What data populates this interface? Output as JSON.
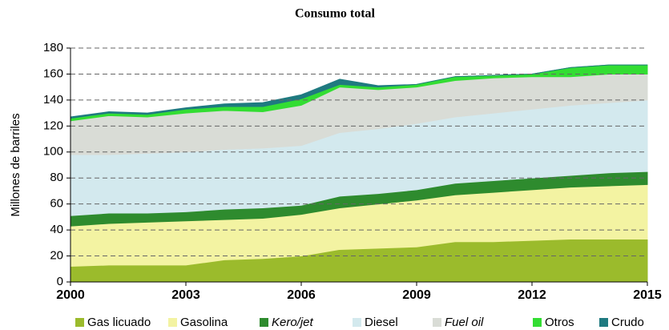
{
  "chart_data": {
    "type": "area",
    "title": "Consumo total",
    "ylabel": "Millones de barriles",
    "x": [
      2000,
      2001,
      2002,
      2003,
      2004,
      2005,
      2006,
      2007,
      2008,
      2009,
      2010,
      2011,
      2012,
      2013,
      2014,
      2015
    ],
    "xlim": [
      2000,
      2015
    ],
    "xticks": [
      2000,
      2003,
      2006,
      2009,
      2012,
      2015
    ],
    "ylim": [
      0,
      180
    ],
    "yticks": [
      0,
      20,
      40,
      60,
      80,
      100,
      120,
      140,
      160,
      180
    ],
    "grid": true,
    "stacked": true,
    "legend": "bottom",
    "series": [
      {
        "name": "Gas licuado",
        "color": "#9bbb2c",
        "values": [
          12,
          13,
          13,
          13,
          17,
          18,
          20,
          25,
          26,
          27,
          31,
          31,
          32,
          33,
          33,
          33
        ]
      },
      {
        "name": "Gasolina",
        "color": "#f3f3a2",
        "values": [
          31,
          32,
          33,
          34,
          31,
          31,
          32,
          32,
          34,
          36,
          36,
          38,
          39,
          40,
          41,
          42
        ]
      },
      {
        "name": "Kero/jet",
        "color": "#2e8b2e",
        "values": [
          8,
          8,
          7,
          7,
          8,
          8,
          7,
          9,
          8,
          8,
          9,
          9,
          9,
          9,
          10,
          10
        ]
      },
      {
        "name": "Diesel",
        "color": "#d3e9ee",
        "values": [
          47,
          45,
          46,
          46,
          46,
          46,
          46,
          49,
          50,
          51,
          51,
          52,
          53,
          54,
          54,
          55
        ]
      },
      {
        "name": "Fuel oil",
        "color": "#d9dcd6",
        "values": [
          26,
          30,
          28,
          30,
          30,
          28,
          31,
          35,
          30,
          28,
          28,
          27,
          25,
          22,
          22,
          20
        ]
      },
      {
        "name": "Otros",
        "color": "#33dd33",
        "values": [
          2,
          2,
          2,
          3,
          3,
          4,
          5,
          2,
          2,
          2,
          3,
          2,
          2,
          7,
          7,
          7
        ]
      },
      {
        "name": "Crudo",
        "color": "#1f7a80",
        "values": [
          1,
          1,
          1,
          1,
          2,
          3,
          3,
          4,
          1,
          0,
          0,
          0,
          0,
          0,
          0,
          0
        ]
      }
    ]
  }
}
